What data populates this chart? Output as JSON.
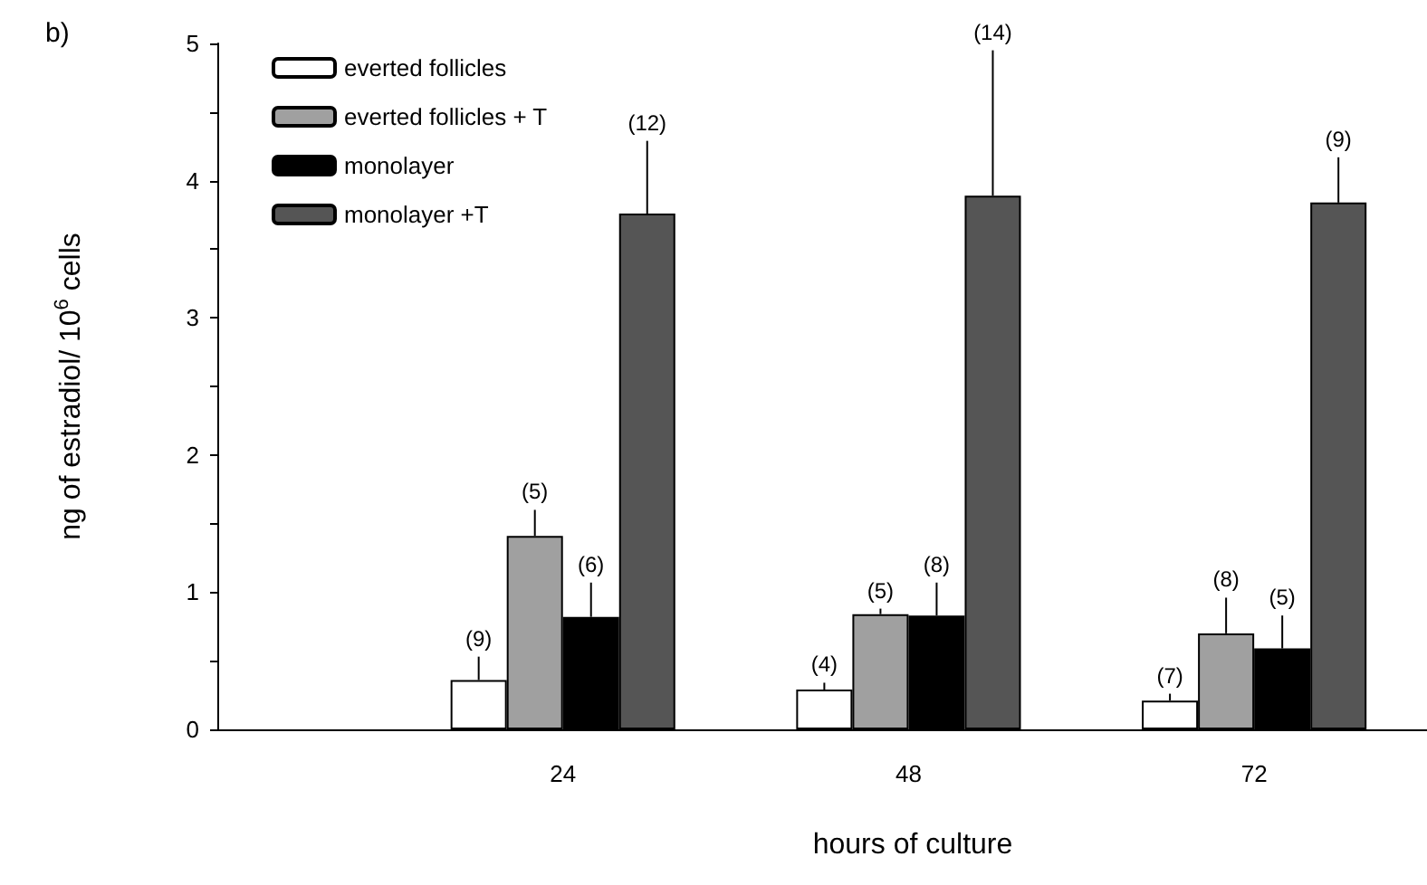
{
  "chart_data": {
    "type": "bar",
    "title": "b)",
    "xlabel": "hours of culture",
    "ylabel": "ng of estradiol/ 10$^{6}$ cells",
    "x": [
      24,
      48,
      72
    ],
    "xlim": [
      0,
      84
    ],
    "xticks": [
      24,
      48,
      72
    ],
    "ylim": [
      0,
      5
    ],
    "yticks": [
      0,
      {
        "value": 0.5,
        "label": null
      },
      1,
      {
        "value": 1.5,
        "label": null
      },
      2,
      {
        "value": 2.5,
        "label": null
      },
      3,
      {
        "value": 3.5,
        "label": null
      },
      4,
      {
        "value": 4.5,
        "label": null
      },
      5
    ],
    "grid": false,
    "legend": "top left",
    "series": [
      {
        "name": "everted follicles",
        "color": "#ffffff",
        "values": [
          0.36,
          0.29,
          0.21
        ],
        "errors": [
          [
            0.36,
            0.53
          ],
          [
            0.29,
            0.34
          ],
          [
            0.21,
            0.26
          ]
        ]
      },
      {
        "name": "everted follicles + T",
        "color": "#a0a0a0",
        "values": [
          1.41,
          0.84,
          0.7
        ],
        "errors": [
          [
            1.41,
            1.6
          ],
          [
            0.84,
            0.88
          ],
          [
            0.7,
            0.96
          ]
        ]
      },
      {
        "name": "monolayer",
        "color": "#000000",
        "values": [
          0.82,
          0.83,
          0.59
        ],
        "errors": [
          [
            0.82,
            1.07
          ],
          [
            0.83,
            1.07
          ],
          [
            0.59,
            0.83
          ]
        ]
      },
      {
        "name": "monolayer +T",
        "color": "#555555",
        "values": [
          3.76,
          3.89,
          3.84
        ],
        "errors": [
          [
            3.76,
            4.29
          ],
          [
            3.89,
            4.95
          ],
          [
            3.84,
            4.17
          ]
        ]
      }
    ],
    "annotations": [
      {
        "text": "(9)",
        "x": 18.15,
        "y": 0.53
      },
      {
        "text": "(5)",
        "x": 22.05,
        "y": 1.6
      },
      {
        "text": "(6)",
        "x": 25.95,
        "y": 1.07
      },
      {
        "text": "(12)",
        "x": 29.85,
        "y": 4.29
      },
      {
        "text": "(4)",
        "x": 42.15,
        "y": 0.34
      },
      {
        "text": "(5)",
        "x": 46.05,
        "y": 0.88
      },
      {
        "text": "(8)",
        "x": 49.95,
        "y": 1.07
      },
      {
        "text": "(14)",
        "x": 53.85,
        "y": 4.95
      },
      {
        "text": "(7)",
        "x": 66.15,
        "y": 0.26
      },
      {
        "text": "(8)",
        "x": 70.05,
        "y": 0.96
      },
      {
        "text": "(5)",
        "x": 73.95,
        "y": 0.83
      },
      {
        "text": "(9)",
        "x": 77.85,
        "y": 4.17
      }
    ]
  }
}
